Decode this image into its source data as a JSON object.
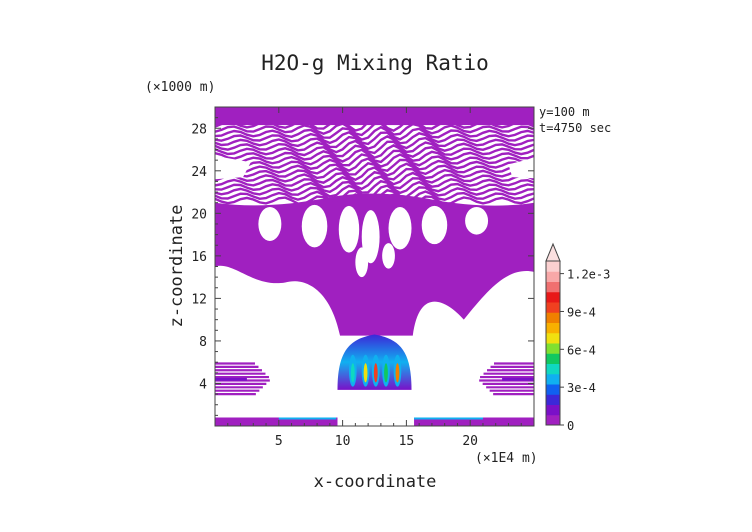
{
  "chart_data": {
    "type": "heatmap",
    "title": "H2O-g Mixing Ratio",
    "xlabel": "x-coordinate",
    "ylabel": "z-coordinate",
    "x_unit": "(×1E4 m)",
    "y_unit": "(×1000 m)",
    "annotations": [
      "y=100 m",
      "t=4750 sec"
    ],
    "xlim": [
      0,
      25
    ],
    "ylim": [
      0,
      30
    ],
    "x_ticks": [
      5,
      10,
      15,
      20
    ],
    "y_ticks": [
      4,
      8,
      12,
      16,
      20,
      24,
      28
    ],
    "colorbar": {
      "min": 0,
      "max": 0.0013,
      "tick_values": [
        0,
        0.0003,
        0.0006,
        0.0009,
        0.0012
      ],
      "tick_labels": [
        "0",
        "3e-4",
        "6e-4",
        "9e-4",
        "1.2e-3"
      ],
      "colors": [
        "#a020c0",
        "#7a10c8",
        "#3c28d8",
        "#1060f0",
        "#10b0f0",
        "#10d8c0",
        "#10c860",
        "#80e030",
        "#f0e010",
        "#f8b000",
        "#f08000",
        "#f04020",
        "#e81818",
        "#f07070",
        "#f8a8a8",
        "#fbd0d0"
      ]
    },
    "regions": [
      {
        "name": "upper-moist-layer",
        "x": [
          0,
          25
        ],
        "y": [
          14.5,
          30
        ],
        "color": "#a020c0",
        "pattern": "striped-above-21"
      },
      {
        "name": "left-low-band",
        "x": [
          0,
          4.3
        ],
        "y": [
          2.8,
          6.2
        ],
        "color": "#a020c0"
      },
      {
        "name": "right-low-band",
        "x": [
          20.7,
          25
        ],
        "y": [
          2.8,
          6.2
        ],
        "color": "#a020c0"
      },
      {
        "name": "surface-band",
        "x": [
          0,
          25
        ],
        "y": [
          0,
          0.8
        ],
        "color": "#a020c0"
      },
      {
        "name": "convective-core",
        "x": [
          9.5,
          15.5
        ],
        "y": [
          3,
          8
        ],
        "color": "#3c28d8"
      }
    ]
  }
}
